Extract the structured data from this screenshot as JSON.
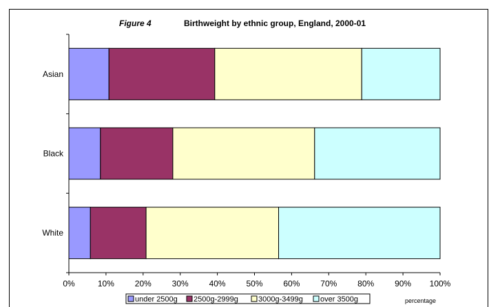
{
  "chart_data": {
    "type": "bar",
    "orientation": "horizontal",
    "stacked": "percent",
    "figure_label": "Figure 4",
    "title": "Birthweight by ethnic group, England, 2000-01",
    "categories": [
      "White",
      "Black",
      "Asian"
    ],
    "series": [
      {
        "name": "under 2500g",
        "color": "#9999ff",
        "values": [
          5.8,
          8.5,
          10.8
        ]
      },
      {
        "name": "2500g-2999g",
        "color": "#993366",
        "values": [
          15.0,
          19.5,
          28.5
        ]
      },
      {
        "name": "3000g-3499g",
        "color": "#ffffcc",
        "values": [
          35.7,
          38.2,
          39.6
        ]
      },
      {
        "name": "over 3500g",
        "color": "#ccffff",
        "values": [
          43.5,
          33.8,
          21.1
        ]
      }
    ],
    "xlim": [
      0,
      100
    ],
    "xticks": [
      "0%",
      "10%",
      "20%",
      "30%",
      "40%",
      "50%",
      "60%",
      "70%",
      "80%",
      "90%",
      "100%"
    ],
    "xlabel": "percentage",
    "ylabel": "",
    "grid": false,
    "legend_position": "bottom"
  }
}
